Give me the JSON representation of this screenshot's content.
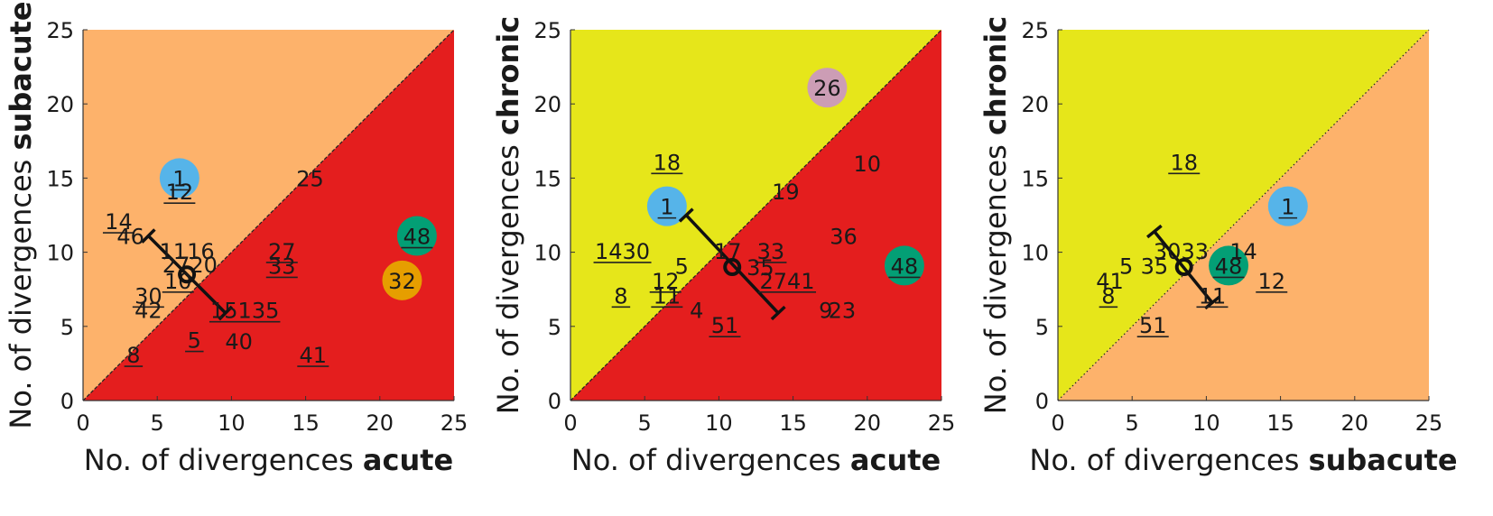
{
  "chart_data": [
    {
      "type": "scatter",
      "xlabel": "No. of divergences",
      "xlabel_bold": "acute",
      "ylabel": "No. of divergences",
      "ylabel_bold": "subacute",
      "xlim": [
        0,
        25
      ],
      "ylim": [
        0,
        25
      ],
      "xticks": [
        "0",
        "5",
        "10",
        "15",
        "20",
        "25"
      ],
      "yticks": [
        "0",
        "5",
        "10",
        "15",
        "20",
        "25"
      ],
      "region_above": "#fdb26b",
      "region_below": "#e41e1e",
      "diagonal_style": "dashed",
      "mean": {
        "x": 7.0,
        "y": 8.5
      },
      "error_bar": {
        "from": [
          4.4,
          11.1
        ],
        "to": [
          9.6,
          5.9
        ]
      },
      "points": [
        {
          "label": "1",
          "x": 6.5,
          "y": 15,
          "underline": true,
          "circle": "#56b4e9"
        },
        {
          "label": "12",
          "x": 6.5,
          "y": 14.1,
          "underline": true
        },
        {
          "label": "25",
          "x": 15.3,
          "y": 15,
          "underline": false
        },
        {
          "label": "14",
          "x": 2.4,
          "y": 12.1,
          "underline": true
        },
        {
          "label": "46",
          "x": 3.2,
          "y": 11.1,
          "underline": false
        },
        {
          "label": "1116",
          "x": 7.0,
          "y": 10.1,
          "underline": false
        },
        {
          "label": "2720",
          "x": 7.2,
          "y": 9.2,
          "underline": false
        },
        {
          "label": "27",
          "x": 13.4,
          "y": 10.1,
          "underline": true
        },
        {
          "label": "33",
          "x": 13.4,
          "y": 9.1,
          "underline": true
        },
        {
          "label": "48",
          "x": 22.5,
          "y": 11.1,
          "underline": true,
          "circle": "#039f75"
        },
        {
          "label": "32",
          "x": 21.5,
          "y": 8.1,
          "underline": false,
          "circle": "#e69e00"
        },
        {
          "label": "10",
          "x": 6.4,
          "y": 8.1,
          "underline": true
        },
        {
          "label": "30",
          "x": 4.4,
          "y": 7.1,
          "underline": true
        },
        {
          "label": "42",
          "x": 4.4,
          "y": 6.1,
          "underline": false
        },
        {
          "label": "15135",
          "x": 10.9,
          "y": 6.1,
          "underline": true
        },
        {
          "label": "5",
          "x": 7.5,
          "y": 4.1,
          "underline": true
        },
        {
          "label": "40",
          "x": 10.5,
          "y": 4.0,
          "underline": false
        },
        {
          "label": "41",
          "x": 15.5,
          "y": 3.1,
          "underline": true
        },
        {
          "label": "8",
          "x": 3.4,
          "y": 3.1,
          "underline": true
        }
      ]
    },
    {
      "type": "scatter",
      "xlabel": "No. of divergences",
      "xlabel_bold": "acute",
      "ylabel": "No. of divergences",
      "ylabel_bold": "chronic",
      "xlim": [
        0,
        25
      ],
      "ylim": [
        0,
        25
      ],
      "xticks": [
        "0",
        "5",
        "10",
        "15",
        "20",
        "25"
      ],
      "yticks": [
        "0",
        "5",
        "10",
        "15",
        "20",
        "25"
      ],
      "region_above": "#e6e61a",
      "region_below": "#e41e1e",
      "diagonal_style": "dashed",
      "mean": {
        "x": 10.9,
        "y": 9.0
      },
      "error_bar": {
        "from": [
          7.8,
          12.5
        ],
        "to": [
          14.0,
          5.9
        ]
      },
      "points": [
        {
          "label": "26",
          "x": 17.3,
          "y": 21.1,
          "underline": false,
          "circle": "#cc9db5"
        },
        {
          "label": "18",
          "x": 6.5,
          "y": 16.1,
          "underline": true
        },
        {
          "label": "10",
          "x": 20.0,
          "y": 16.0,
          "underline": false
        },
        {
          "label": "19",
          "x": 14.5,
          "y": 14.1,
          "underline": false
        },
        {
          "label": "1",
          "x": 6.5,
          "y": 13.1,
          "underline": true,
          "circle": "#56b4e9"
        },
        {
          "label": "36",
          "x": 18.4,
          "y": 11.1,
          "underline": false
        },
        {
          "label": "48",
          "x": 22.5,
          "y": 9.1,
          "underline": true,
          "circle": "#039f75"
        },
        {
          "label": "1430",
          "x": 3.5,
          "y": 10.1,
          "underline": true
        },
        {
          "label": "17",
          "x": 10.6,
          "y": 10.1,
          "underline": false
        },
        {
          "label": "33",
          "x": 13.5,
          "y": 10.1,
          "underline": true
        },
        {
          "label": "5",
          "x": 7.5,
          "y": 9.1,
          "underline": false
        },
        {
          "label": "35",
          "x": 12.8,
          "y": 9.0,
          "underline": false
        },
        {
          "label": "12",
          "x": 6.4,
          "y": 8.1,
          "underline": true
        },
        {
          "label": "2741",
          "x": 14.6,
          "y": 8.1,
          "underline": true
        },
        {
          "label": "8",
          "x": 3.4,
          "y": 7.1,
          "underline": true
        },
        {
          "label": "11",
          "x": 6.5,
          "y": 7.1,
          "underline": true
        },
        {
          "label": "4",
          "x": 8.5,
          "y": 6.1,
          "underline": false
        },
        {
          "label": "9",
          "x": 17.2,
          "y": 6.1,
          "underline": false
        },
        {
          "label": "23",
          "x": 18.3,
          "y": 6.1,
          "underline": false
        },
        {
          "label": "51",
          "x": 10.4,
          "y": 5.1,
          "underline": true
        }
      ]
    },
    {
      "type": "scatter",
      "xlabel": "No. of divergences",
      "xlabel_bold": "subacute",
      "ylabel": "No. of divergences",
      "ylabel_bold": "chronic",
      "xlim": [
        0,
        25
      ],
      "ylim": [
        0,
        25
      ],
      "xticks": [
        "0",
        "5",
        "10",
        "15",
        "20",
        "25"
      ],
      "yticks": [
        "0",
        "5",
        "10",
        "15",
        "20",
        "25"
      ],
      "region_above": "#e6e61a",
      "region_below": "#fdb26b",
      "diagonal_style": "dotted",
      "mean": {
        "x": 8.5,
        "y": 9.0
      },
      "error_bar": {
        "from": [
          6.5,
          11.4
        ],
        "to": [
          10.4,
          6.6
        ]
      },
      "points": [
        {
          "label": "18",
          "x": 8.5,
          "y": 16.1,
          "underline": true
        },
        {
          "label": "1",
          "x": 15.5,
          "y": 13.1,
          "underline": true,
          "circle": "#56b4e9"
        },
        {
          "label": "3033",
          "x": 8.3,
          "y": 10.1,
          "underline": false
        },
        {
          "label": "14",
          "x": 12.5,
          "y": 10.1,
          "underline": false
        },
        {
          "label": "5",
          "x": 4.6,
          "y": 9.1,
          "underline": false
        },
        {
          "label": "35",
          "x": 6.5,
          "y": 9.1,
          "underline": false
        },
        {
          "label": "48",
          "x": 11.5,
          "y": 9.1,
          "underline": true,
          "circle": "#039f75"
        },
        {
          "label": "41",
          "x": 3.5,
          "y": 8.1,
          "underline": false
        },
        {
          "label": "12",
          "x": 14.4,
          "y": 8.1,
          "underline": true
        },
        {
          "label": "8",
          "x": 3.4,
          "y": 7.1,
          "underline": true
        },
        {
          "label": "11",
          "x": 10.4,
          "y": 7.1,
          "underline": true
        },
        {
          "label": "51",
          "x": 6.4,
          "y": 5.1,
          "underline": true
        }
      ]
    }
  ]
}
